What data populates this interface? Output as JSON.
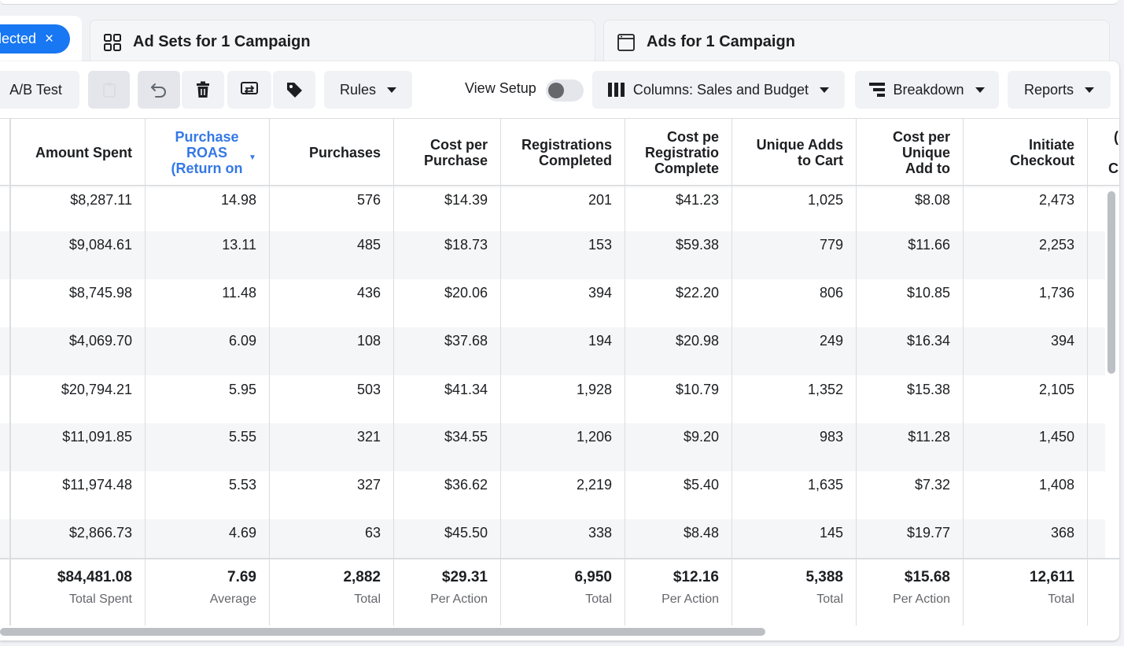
{
  "chip": {
    "label": "lected",
    "close": "×"
  },
  "tabs": [
    {
      "label": "Ad Sets for 1 Campaign",
      "icon": "grid-icon"
    },
    {
      "label": "Ads for 1 Campaign",
      "icon": "ad-window-icon"
    }
  ],
  "toolbar": {
    "ab_test": "A/B Test",
    "rules": "Rules",
    "view_setup": "View Setup",
    "view_setup_on": false,
    "columns": "Columns: Sales and Budget",
    "breakdown": "Breakdown",
    "reports": "Reports"
  },
  "columns": [
    "Amount Spent",
    "Purchase\nROAS\n(Return on",
    "Purchases",
    "Cost per\nPurchase",
    "Registrations\nCompleted",
    "Cost pe\nRegistratio\nComplete",
    "Unique Adds\nto Cart",
    "Cost per\nUnique\nAdd to",
    "Initiate\nCheckout"
  ],
  "rows": [
    [
      "$8,287.11",
      "14.98",
      "576",
      "$14.39",
      "201",
      "$41.23",
      "1,025",
      "$8.08",
      "2,473"
    ],
    [
      "$9,084.61",
      "13.11",
      "485",
      "$18.73",
      "153",
      "$59.38",
      "779",
      "$11.66",
      "2,253"
    ],
    [
      "$8,745.98",
      "11.48",
      "436",
      "$20.06",
      "394",
      "$22.20",
      "806",
      "$10.85",
      "1,736"
    ],
    [
      "$4,069.70",
      "6.09",
      "108",
      "$37.68",
      "194",
      "$20.98",
      "249",
      "$16.34",
      "394"
    ],
    [
      "$20,794.21",
      "5.95",
      "503",
      "$41.34",
      "1,928",
      "$10.79",
      "1,352",
      "$15.38",
      "2,105"
    ],
    [
      "$11,091.85",
      "5.55",
      "321",
      "$34.55",
      "1,206",
      "$9.20",
      "983",
      "$11.28",
      "1,450"
    ],
    [
      "$11,974.48",
      "5.53",
      "327",
      "$36.62",
      "2,219",
      "$5.40",
      "1,635",
      "$7.32",
      "1,408"
    ],
    [
      "$2,866.73",
      "4.69",
      "63",
      "$45.50",
      "338",
      "$8.48",
      "145",
      "$19.77",
      "368"
    ]
  ],
  "totals": [
    {
      "value": "$84,481.08",
      "label": "Total Spent"
    },
    {
      "value": "7.69",
      "label": "Average"
    },
    {
      "value": "2,882",
      "label": "Total"
    },
    {
      "value": "$29.31",
      "label": "Per Action"
    },
    {
      "value": "6,950",
      "label": "Total"
    },
    {
      "value": "$12.16",
      "label": "Per Action"
    },
    {
      "value": "5,388",
      "label": "Total"
    },
    {
      "value": "$15.68",
      "label": "Per Action"
    },
    {
      "value": "12,611",
      "label": "Total"
    }
  ]
}
